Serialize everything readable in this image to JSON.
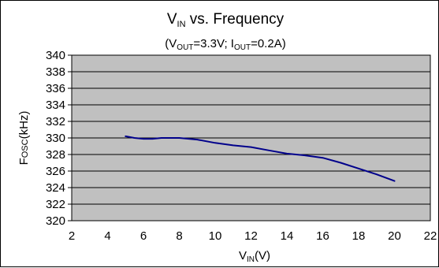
{
  "chart_data": {
    "type": "line",
    "title": {
      "main": "V",
      "main_sub": "IN",
      "main_rest": " vs. Frequency"
    },
    "subtitle": {
      "p1": "(V",
      "s1": "OUT",
      "p2": "=3.3V; I",
      "s2": "OUT",
      "p3": "=0.2A)"
    },
    "xlabel": {
      "main": "V",
      "sub": "IN",
      "rest": "(V)"
    },
    "ylabel": {
      "main": "F",
      "sub": "OSC",
      "rest": "(kHz)"
    },
    "xlim": [
      2,
      22
    ],
    "ylim": [
      320,
      340
    ],
    "x_ticks": [
      2,
      4,
      6,
      8,
      10,
      12,
      14,
      16,
      18,
      20,
      22
    ],
    "x_tick_labels": [
      "2",
      "4",
      "6",
      "8",
      "10",
      "12",
      "14",
      "16",
      "18",
      "20",
      "22"
    ],
    "y_ticks": [
      320,
      322,
      324,
      326,
      328,
      330,
      332,
      334,
      336,
      338,
      340
    ],
    "y_tick_labels": [
      "320",
      "322",
      "324",
      "326",
      "328",
      "330",
      "332",
      "334",
      "336",
      "338",
      "340"
    ],
    "grid": "horizontal",
    "legend": "none",
    "series": [
      {
        "color": "#00008b",
        "x": [
          5,
          5.5,
          6,
          6.5,
          7,
          7.5,
          8,
          9,
          10,
          11,
          12,
          13,
          14,
          15,
          16,
          17,
          18,
          19,
          20
        ],
        "y": [
          330.2,
          330.0,
          329.9,
          329.9,
          330.0,
          330.0,
          330.0,
          329.8,
          329.4,
          329.1,
          328.9,
          328.5,
          328.1,
          327.9,
          327.6,
          327.0,
          326.3,
          325.6,
          324.8
        ]
      }
    ],
    "colors": {
      "plot_background": "#c0c0c0",
      "gridline": "#000000",
      "line": "#00008b"
    }
  }
}
